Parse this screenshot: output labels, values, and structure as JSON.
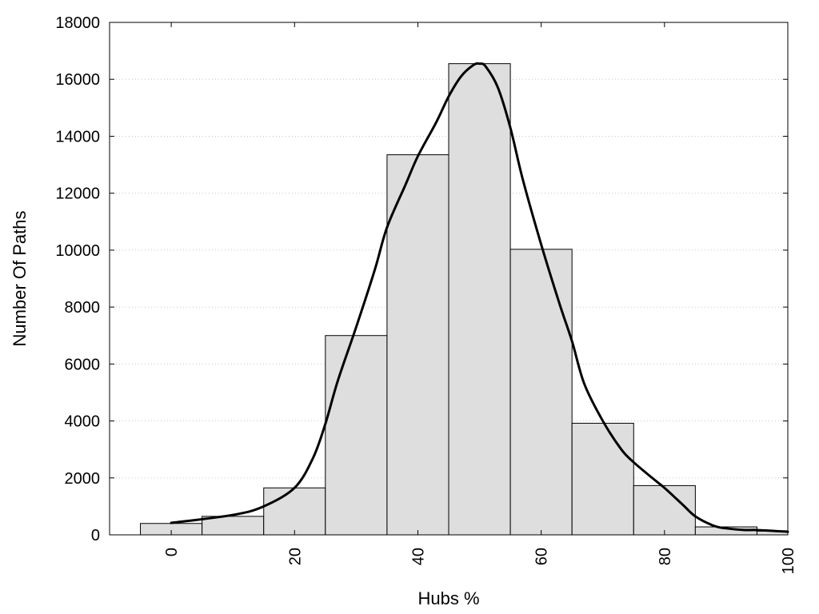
{
  "chart_data": {
    "type": "bar",
    "xlabel": "Hubs %",
    "ylabel": "Number Of Paths",
    "xlim": [
      -10,
      100
    ],
    "ylim": [
      0,
      18000
    ],
    "x_ticks": [
      "0",
      "20",
      "40",
      "60",
      "80",
      "100"
    ],
    "y_ticks": [
      "0",
      "2000",
      "4000",
      "6000",
      "8000",
      "10000",
      "12000",
      "14000",
      "16000",
      "18000"
    ],
    "grid": "horizontal-dotted",
    "bin_width": 10,
    "bins": [
      {
        "x": 0,
        "value": 400
      },
      {
        "x": 10,
        "value": 650
      },
      {
        "x": 20,
        "value": 1650
      },
      {
        "x": 30,
        "value": 7000
      },
      {
        "x": 40,
        "value": 13350
      },
      {
        "x": 50,
        "value": 16550
      },
      {
        "x": 60,
        "value": 10030
      },
      {
        "x": 70,
        "value": 3920
      },
      {
        "x": 80,
        "value": 1730
      },
      {
        "x": 90,
        "value": 280
      },
      {
        "x": 100,
        "value": 130
      }
    ],
    "density_curve": {
      "x": [
        0,
        10,
        15,
        20,
        23,
        25,
        27,
        30,
        33,
        35,
        38,
        40,
        43,
        45,
        47,
        49,
        50,
        51,
        53,
        55,
        57,
        60,
        63,
        65,
        67,
        70,
        73,
        75,
        78,
        80,
        83,
        85,
        88,
        90,
        93,
        95,
        100
      ],
      "y": [
        420,
        700,
        1000,
        1650,
        2700,
        3900,
        5400,
        7300,
        9300,
        10800,
        12300,
        13300,
        14500,
        15400,
        16100,
        16500,
        16550,
        16450,
        15700,
        14300,
        12500,
        10200,
        8100,
        6800,
        5300,
        4000,
        3000,
        2550,
        2000,
        1650,
        1050,
        650,
        320,
        230,
        170,
        170,
        110
      ]
    }
  }
}
